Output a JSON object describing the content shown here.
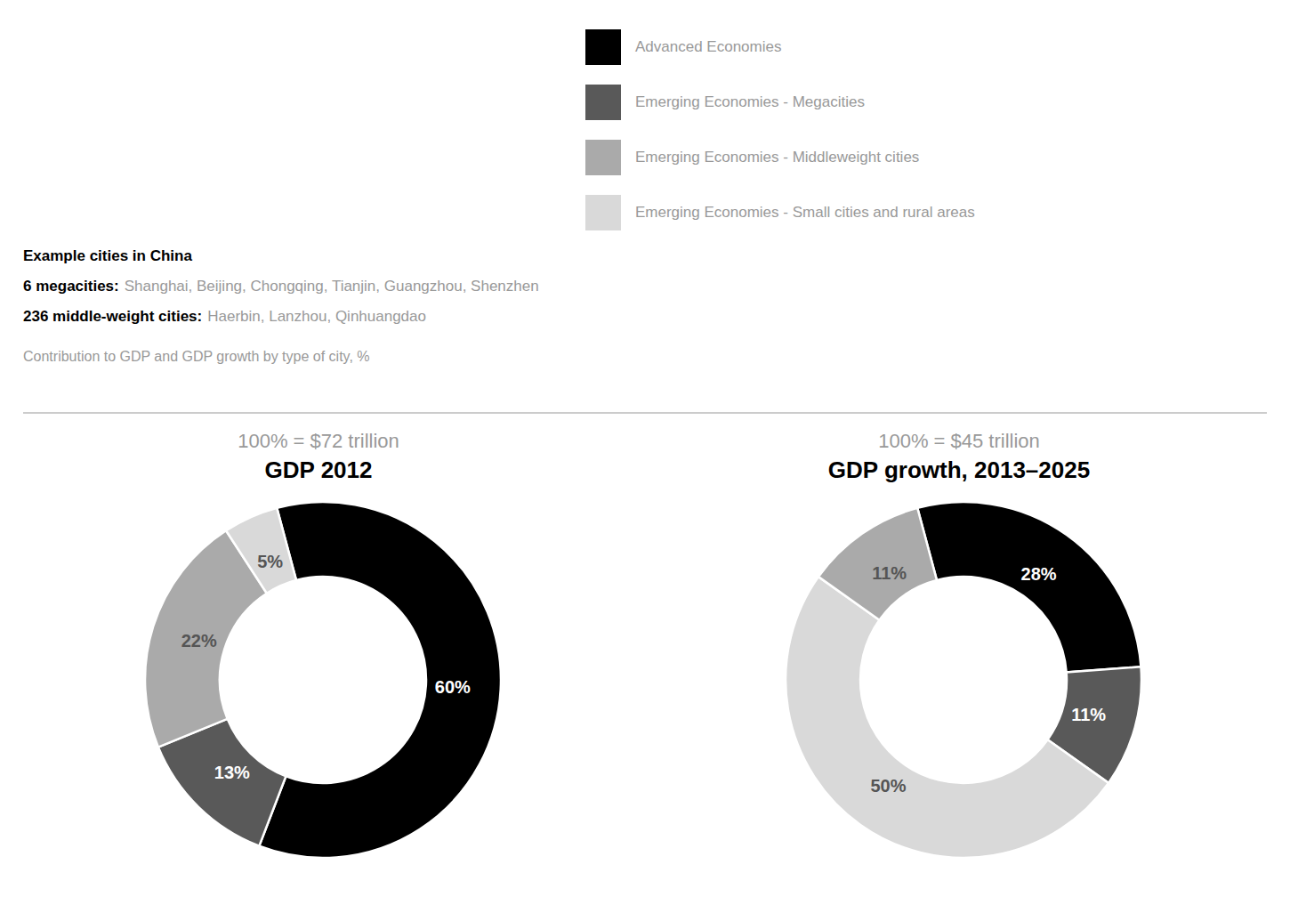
{
  "chart_data": [
    {
      "type": "pie",
      "subtitle": "100% = $72 trillion",
      "title": "GDP 2012",
      "categories": [
        "Advanced Economies",
        "Emerging Economies - Megacities",
        "Emerging Economies - Middleweight cities",
        "Emerging Economies - Small cities and rural areas"
      ],
      "values": [
        60,
        13,
        22,
        5
      ],
      "value_labels": [
        "60%",
        "13%",
        "22%",
        "5%"
      ],
      "colors": [
        "#000000",
        "#595959",
        "#aaaaaa",
        "#d9d9d9"
      ],
      "data_labels": true,
      "legend": "upper right"
    },
    {
      "type": "pie",
      "subtitle": "100% = $45 trillion",
      "title": "GDP growth, 2013–2025",
      "categories": [
        "Advanced Economies",
        "Emerging Economies - Megacities",
        "Emerging Economies - Small cities and rural areas",
        "Emerging Economies - Middleweight cities"
      ],
      "values": [
        28,
        11,
        50,
        11
      ],
      "value_labels": [
        "28%",
        "11%",
        "50%",
        "11%"
      ],
      "colors": [
        "#000000",
        "#595959",
        "#d9d9d9",
        "#aaaaaa"
      ],
      "data_labels": true
    }
  ],
  "annotations": [
    [
      "Example cities in China"
    ],
    [
      "6 megacities:",
      "Shanghai, Beijing, Chongqing, Tianjin, Guangzhou, Shenzhen"
    ],
    [
      "236 middle-weight cities:",
      "Haerbin, Lanzhou, Qinhuangdao"
    ],
    [
      "Contribution to GDP and GDP growth by type of city, %"
    ]
  ]
}
